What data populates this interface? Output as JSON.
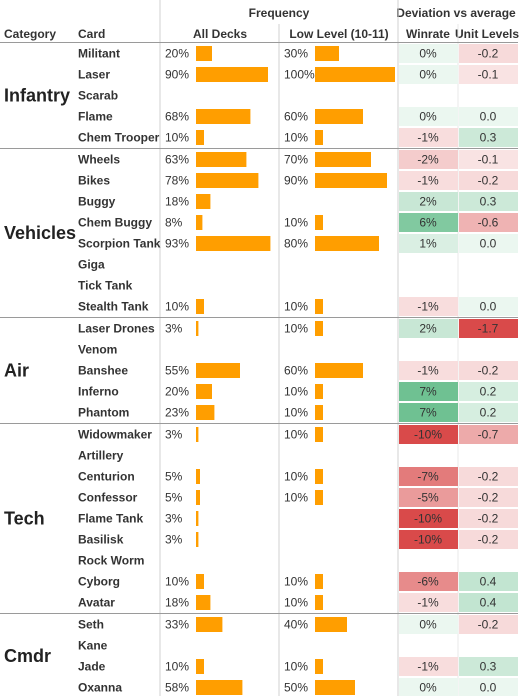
{
  "chart_data": {
    "type": "table",
    "headers": {
      "category": "Category",
      "card": "Card",
      "frequency": "Frequency",
      "all_decks": "All Decks",
      "low_level": "Low Level (10-11)",
      "deviation": "Deviation vs average",
      "winrate": "Winrate",
      "unit_levels": "Unit Levels"
    },
    "frequency_scale_max": 100,
    "deviation_scales": {
      "winrate_abs_max": 10,
      "unit_levels_abs_max": 1.7
    },
    "colors": {
      "bar": "#FF9E00",
      "positive": "#3AAA6A",
      "negative": "#D94A4A",
      "gridline": "#D0D0D0",
      "group_divider": "#9A9A9A"
    },
    "groups": [
      {
        "category": "Infantry",
        "rows": [
          {
            "card": "Militant",
            "all_decks": 20,
            "low_level": 30,
            "winrate": 0,
            "unit_levels": -0.2
          },
          {
            "card": "Laser",
            "all_decks": 90,
            "low_level": 100,
            "winrate": 0,
            "unit_levels": -0.1
          },
          {
            "card": "Scarab",
            "all_decks": null,
            "low_level": null,
            "winrate": null,
            "unit_levels": null
          },
          {
            "card": "Flame",
            "all_decks": 68,
            "low_level": 60,
            "winrate": 0,
            "unit_levels": 0.0
          },
          {
            "card": "Chem Trooper",
            "all_decks": 10,
            "low_level": 10,
            "winrate": -1,
            "unit_levels": 0.3
          }
        ]
      },
      {
        "category": "Vehicles",
        "rows": [
          {
            "card": "Wheels",
            "all_decks": 63,
            "low_level": 70,
            "winrate": -2,
            "unit_levels": -0.1
          },
          {
            "card": "Bikes",
            "all_decks": 78,
            "low_level": 90,
            "winrate": -1,
            "unit_levels": -0.2
          },
          {
            "card": "Buggy",
            "all_decks": 18,
            "low_level": null,
            "winrate": 2,
            "unit_levels": 0.3
          },
          {
            "card": "Chem Buggy",
            "all_decks": 8,
            "low_level": 10,
            "winrate": 6,
            "unit_levels": -0.6
          },
          {
            "card": "Scorpion Tank",
            "all_decks": 93,
            "low_level": 80,
            "winrate": 1,
            "unit_levels": 0.0
          },
          {
            "card": "Giga",
            "all_decks": null,
            "low_level": null,
            "winrate": null,
            "unit_levels": null
          },
          {
            "card": "Tick Tank",
            "all_decks": null,
            "low_level": null,
            "winrate": null,
            "unit_levels": null
          },
          {
            "card": "Stealth Tank",
            "all_decks": 10,
            "low_level": 10,
            "winrate": -1,
            "unit_levels": 0.0
          }
        ]
      },
      {
        "category": "Air",
        "rows": [
          {
            "card": "Laser Drones",
            "all_decks": 3,
            "low_level": 10,
            "winrate": 2,
            "unit_levels": -1.7
          },
          {
            "card": "Venom",
            "all_decks": null,
            "low_level": null,
            "winrate": null,
            "unit_levels": null
          },
          {
            "card": "Banshee",
            "all_decks": 55,
            "low_level": 60,
            "winrate": -1,
            "unit_levels": -0.2
          },
          {
            "card": "Inferno",
            "all_decks": 20,
            "low_level": 10,
            "winrate": 7,
            "unit_levels": 0.2
          },
          {
            "card": "Phantom",
            "all_decks": 23,
            "low_level": 10,
            "winrate": 7,
            "unit_levels": 0.2
          }
        ]
      },
      {
        "category": "Tech",
        "rows": [
          {
            "card": "Widowmaker",
            "all_decks": 3,
            "low_level": 10,
            "winrate": -10,
            "unit_levels": -0.7
          },
          {
            "card": "Artillery",
            "all_decks": null,
            "low_level": null,
            "winrate": null,
            "unit_levels": null
          },
          {
            "card": "Centurion",
            "all_decks": 5,
            "low_level": 10,
            "winrate": -7,
            "unit_levels": -0.2
          },
          {
            "card": "Confessor",
            "all_decks": 5,
            "low_level": 10,
            "winrate": -5,
            "unit_levels": -0.2
          },
          {
            "card": "Flame Tank",
            "all_decks": 3,
            "low_level": null,
            "winrate": -10,
            "unit_levels": -0.2
          },
          {
            "card": "Basilisk",
            "all_decks": 3,
            "low_level": null,
            "winrate": -10,
            "unit_levels": -0.2
          },
          {
            "card": "Rock Worm",
            "all_decks": null,
            "low_level": null,
            "winrate": null,
            "unit_levels": null
          },
          {
            "card": "Cyborg",
            "all_decks": 10,
            "low_level": 10,
            "winrate": -6,
            "unit_levels": 0.4
          },
          {
            "card": "Avatar",
            "all_decks": 18,
            "low_level": 10,
            "winrate": -1,
            "unit_levels": 0.4
          }
        ]
      },
      {
        "category": "Cmdr",
        "rows": [
          {
            "card": "Seth",
            "all_decks": 33,
            "low_level": 40,
            "winrate": 0,
            "unit_levels": -0.2
          },
          {
            "card": "Kane",
            "all_decks": null,
            "low_level": null,
            "winrate": null,
            "unit_levels": null
          },
          {
            "card": "Jade",
            "all_decks": 10,
            "low_level": 10,
            "winrate": -1,
            "unit_levels": 0.3
          },
          {
            "card": "Oxanna",
            "all_decks": 58,
            "low_level": 50,
            "winrate": 0,
            "unit_levels": 0.0
          }
        ]
      }
    ]
  }
}
